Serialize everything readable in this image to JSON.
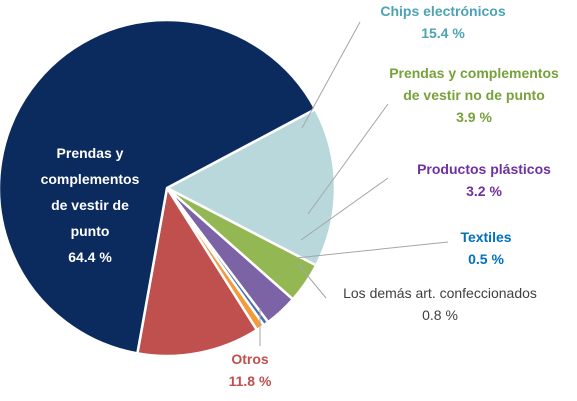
{
  "chart_data": {
    "type": "pie",
    "slices": [
      {
        "label": [
          "Prendas y",
          "complementos",
          "de vestir de",
          "punto"
        ],
        "value": 64.4,
        "value_label": "64.4 %",
        "color": "#0b2a5e",
        "text_color": "#ffffff"
      },
      {
        "label": [
          "Chips electrónicos"
        ],
        "value": 15.4,
        "value_label": "15.4 %",
        "color": "#b9d8dc",
        "text_color": "#4ba3b5"
      },
      {
        "label": [
          "Prendas y complementos",
          "de vestir no de punto"
        ],
        "value": 3.9,
        "value_label": "3.9 %",
        "color": "#93b853",
        "text_color": "#77a13a"
      },
      {
        "label": [
          "Productos  plásticos"
        ],
        "value": 3.2,
        "value_label": "3.2 %",
        "color": "#7b63a5",
        "text_color": "#7030a0"
      },
      {
        "label": [
          "Textiles"
        ],
        "value": 0.5,
        "value_label": "0.5 %",
        "color": "#4a6fb0",
        "text_color": "#0070c0"
      },
      {
        "label": [
          "Los demás art. confeccionados"
        ],
        "value": 0.8,
        "value_label": "0.8 %",
        "color": "#f39a3a",
        "text_color": "#404040"
      },
      {
        "label": [
          "Otros"
        ],
        "value": 11.8,
        "value_label": "11.8 %",
        "color": "#c0504d",
        "text_color": "#c0504d"
      }
    ]
  }
}
